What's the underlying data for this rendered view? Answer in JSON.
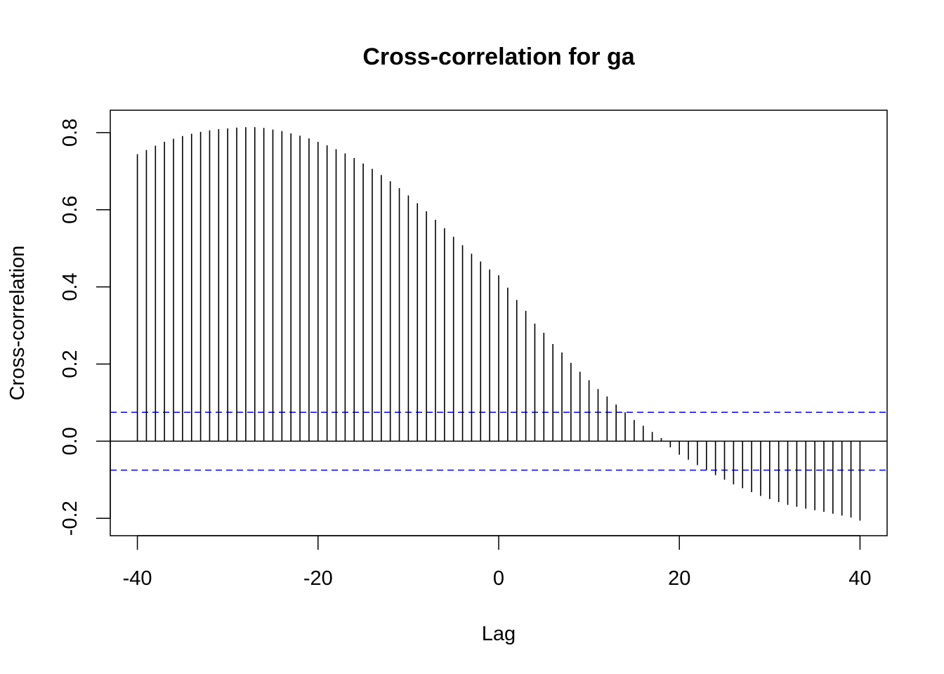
{
  "chart_data": {
    "type": "bar",
    "title": "Cross-correlation for ga",
    "xlabel": "Lag",
    "ylabel": "Cross-correlation",
    "xlim": [
      -43,
      43
    ],
    "ylim": [
      -0.245,
      0.858
    ],
    "x_ticks": [
      -40,
      -20,
      0,
      20,
      40
    ],
    "x_tick_labels": [
      "-40",
      "-20",
      "0",
      "20",
      "40"
    ],
    "y_ticks": [
      -0.2,
      0.0,
      0.2,
      0.4,
      0.6,
      0.8
    ],
    "y_tick_labels": [
      "-0.2",
      "0.0",
      "0.2",
      "0.4",
      "0.6",
      "0.8"
    ],
    "confidence_bound": 0.075,
    "grid": false,
    "legend": "none",
    "colors": {
      "bars": "#000000",
      "zero_line": "#000000",
      "confidence_lines": "#0000ff"
    },
    "x": [
      -40,
      -39,
      -38,
      -37,
      -36,
      -35,
      -34,
      -33,
      -32,
      -31,
      -30,
      -29,
      -28,
      -27,
      -26,
      -25,
      -24,
      -23,
      -22,
      -21,
      -20,
      -19,
      -18,
      -17,
      -16,
      -15,
      -14,
      -13,
      -12,
      -11,
      -10,
      -9,
      -8,
      -7,
      -6,
      -5,
      -4,
      -3,
      -2,
      -1,
      0,
      1,
      2,
      3,
      4,
      5,
      6,
      7,
      8,
      9,
      10,
      11,
      12,
      13,
      14,
      15,
      16,
      17,
      18,
      19,
      20,
      21,
      22,
      23,
      24,
      25,
      26,
      27,
      28,
      29,
      30,
      31,
      32,
      33,
      34,
      35,
      36,
      37,
      38,
      39,
      40
    ],
    "values": [
      0.744,
      0.755,
      0.766,
      0.776,
      0.784,
      0.791,
      0.797,
      0.802,
      0.806,
      0.809,
      0.811,
      0.813,
      0.814,
      0.814,
      0.812,
      0.808,
      0.804,
      0.798,
      0.792,
      0.785,
      0.776,
      0.767,
      0.757,
      0.746,
      0.734,
      0.72,
      0.706,
      0.69,
      0.674,
      0.656,
      0.637,
      0.617,
      0.596,
      0.574,
      0.552,
      0.53,
      0.508,
      0.486,
      0.466,
      0.445,
      0.43,
      0.398,
      0.366,
      0.338,
      0.305,
      0.281,
      0.252,
      0.23,
      0.203,
      0.18,
      0.158,
      0.135,
      0.116,
      0.095,
      0.075,
      0.055,
      0.04,
      0.024,
      0.008,
      -0.016,
      -0.035,
      -0.048,
      -0.062,
      -0.075,
      -0.088,
      -0.1,
      -0.112,
      -0.122,
      -0.132,
      -0.142,
      -0.15,
      -0.158,
      -0.165,
      -0.17,
      -0.175,
      -0.179,
      -0.183,
      -0.188,
      -0.193,
      -0.198,
      -0.206
    ]
  }
}
